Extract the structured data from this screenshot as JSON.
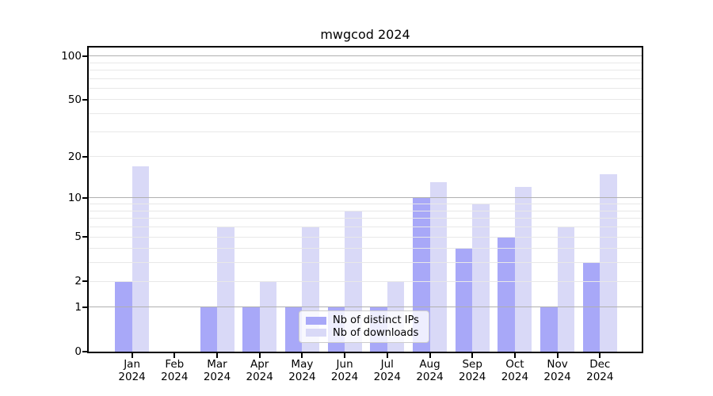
{
  "title": "mwgcod 2024",
  "chart_data": {
    "type": "bar",
    "title": "mwgcod 2024",
    "categories": [
      "Jan 2024",
      "Feb 2024",
      "Mar 2024",
      "Apr 2024",
      "May 2024",
      "Jun 2024",
      "Jul 2024",
      "Aug 2024",
      "Sep 2024",
      "Oct 2024",
      "Nov 2024",
      "Dec 2024"
    ],
    "x_tick_labels": [
      [
        "Jan",
        "2024"
      ],
      [
        "Feb",
        "2024"
      ],
      [
        "Mar",
        "2024"
      ],
      [
        "Apr",
        "2024"
      ],
      [
        "May",
        "2024"
      ],
      [
        "Jun",
        "2024"
      ],
      [
        "Jul",
        "2024"
      ],
      [
        "Aug",
        "2024"
      ],
      [
        "Sep",
        "2024"
      ],
      [
        "Oct",
        "2024"
      ],
      [
        "Nov",
        "2024"
      ],
      [
        "Dec",
        "2024"
      ]
    ],
    "series": [
      {
        "name": "Nb of distinct IPs",
        "color": "#a8a8f8",
        "values": [
          2,
          0,
          1,
          1,
          1,
          1,
          1,
          10,
          4,
          5,
          1,
          3
        ]
      },
      {
        "name": "Nb of downloads",
        "color": "#d9d9f7",
        "values": [
          17,
          0,
          6,
          2,
          6,
          8,
          2,
          13,
          9,
          12,
          6,
          15
        ]
      }
    ],
    "xlabel": "",
    "ylabel": "",
    "yscale": "log10(1+x)",
    "ylim": [
      0,
      114
    ],
    "yticks": [
      0,
      1,
      2,
      5,
      10,
      20,
      50,
      100
    ],
    "grid": {
      "on": true,
      "major_values": [
        1,
        10,
        100
      ],
      "minor_values": [
        2,
        3,
        4,
        5,
        6,
        7,
        8,
        9,
        20,
        30,
        40,
        50,
        60,
        70,
        80,
        90
      ],
      "major_color": "#b0b0b0",
      "minor_color": "#e8e8e8"
    },
    "legend_position": "lower center",
    "bar_color_dark": "#a8a8f8",
    "bar_color_light": "#d9d9f7",
    "spine_color": "#000000",
    "background_color": "#ffffff"
  }
}
